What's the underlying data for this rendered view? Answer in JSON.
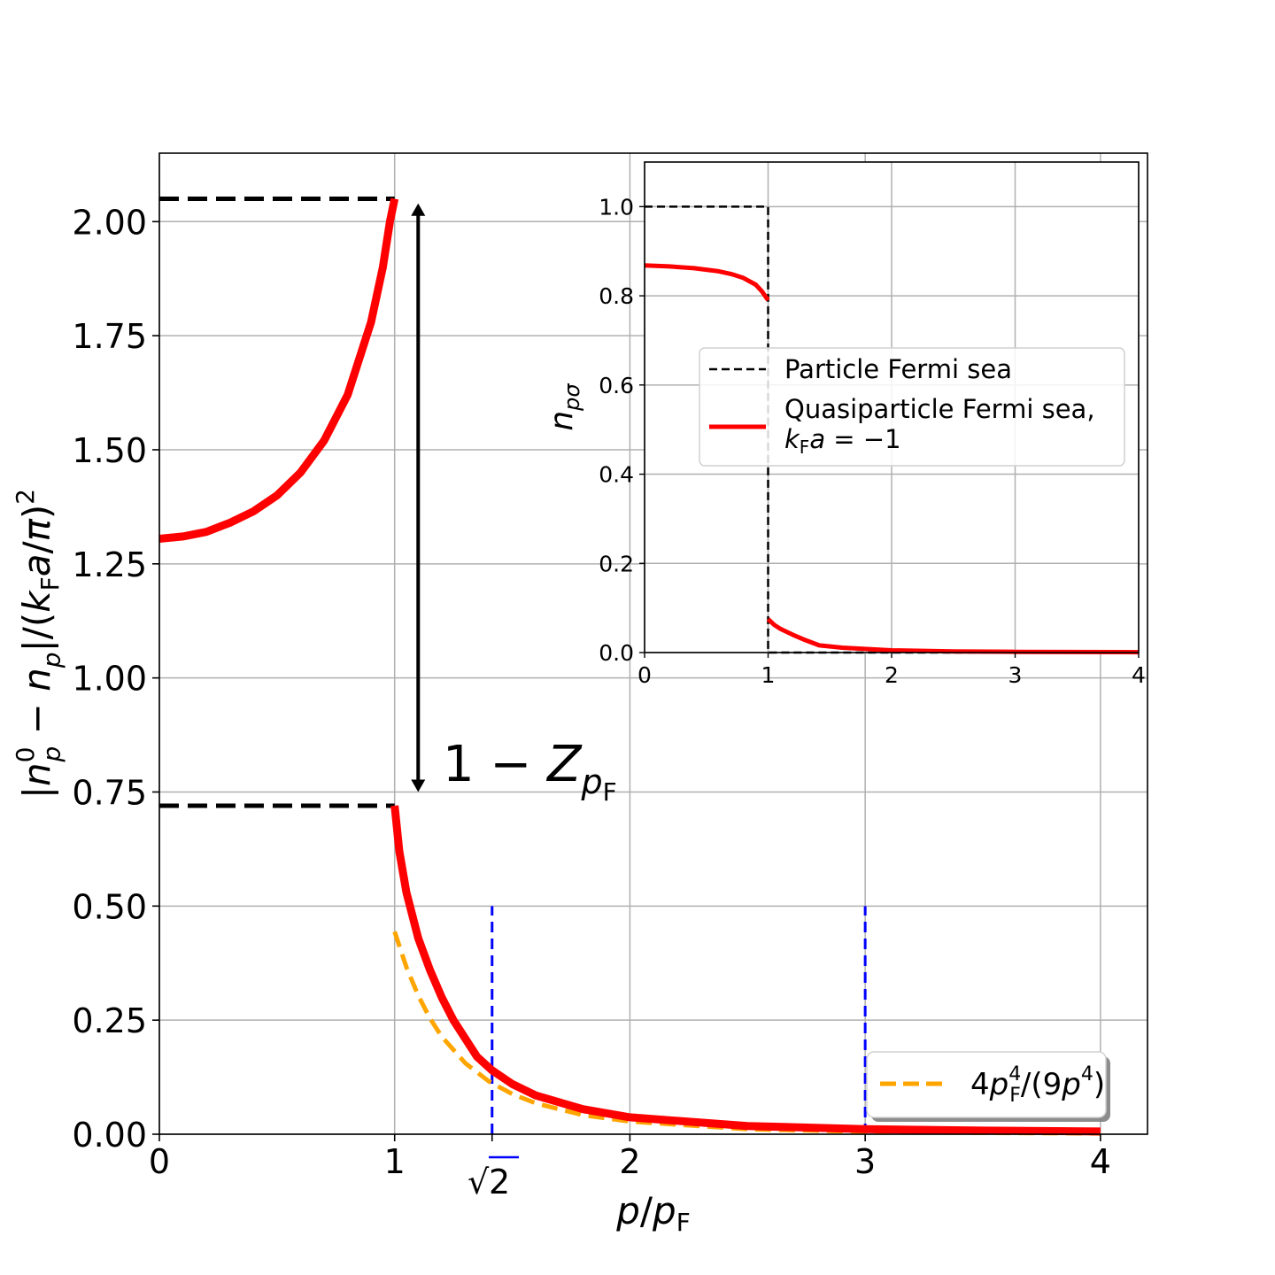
{
  "chart_data": [
    {
      "type": "line",
      "xlabel": "p/p_F",
      "ylabel": "|n_p^0 − n_p|/(k_F a/π)^2",
      "xlim": [
        0,
        4.2
      ],
      "ylim": [
        0,
        2.15
      ],
      "grid": true,
      "x_ticks": [
        "0",
        "1",
        "2",
        "3",
        "4"
      ],
      "y_ticks": [
        "0.00",
        "0.25",
        "0.50",
        "0.75",
        "1.00",
        "1.25",
        "1.50",
        "1.75",
        "2.00"
      ],
      "extra_x_tick": {
        "label": "√2",
        "value": 1.4142,
        "color": "#0000ff"
      },
      "series": [
        {
          "name": "",
          "color": "#ff0000",
          "style": "solid",
          "x": [
            0,
            0.1,
            0.2,
            0.3,
            0.4,
            0.5,
            0.6,
            0.7,
            0.8,
            0.9,
            0.95,
            0.98,
            1.0
          ],
          "y": [
            1.305,
            1.31,
            1.32,
            1.34,
            1.365,
            1.4,
            1.45,
            1.52,
            1.62,
            1.78,
            1.9,
            2.0,
            2.05
          ]
        },
        {
          "name": "",
          "color": "#ff0000",
          "style": "solid",
          "x": [
            1.0,
            1.02,
            1.05,
            1.1,
            1.15,
            1.2,
            1.25,
            1.3,
            1.35,
            1.4142,
            1.5,
            1.6,
            1.8,
            2.0,
            2.5,
            3.0,
            3.5,
            4.0
          ],
          "y": [
            0.72,
            0.62,
            0.53,
            0.43,
            0.36,
            0.3,
            0.25,
            0.21,
            0.17,
            0.14,
            0.11,
            0.085,
            0.055,
            0.037,
            0.018,
            0.011,
            0.008,
            0.006
          ]
        },
        {
          "name": "4p_F^4/(9p^4)",
          "color": "#ffa500",
          "style": "dashed",
          "x": [
            1.0,
            1.05,
            1.1,
            1.15,
            1.2,
            1.3,
            1.4,
            1.5,
            1.6,
            1.8,
            2.0,
            2.5,
            3.0,
            3.5,
            4.0
          ],
          "y": [
            0.444,
            0.366,
            0.304,
            0.254,
            0.214,
            0.156,
            0.116,
            0.088,
            0.068,
            0.042,
            0.028,
            0.011,
            0.0055,
            0.003,
            0.0017
          ]
        }
      ],
      "reference_lines": [
        {
          "type": "hline",
          "y": 2.05,
          "x_range": [
            0,
            1.0
          ],
          "color": "#000000",
          "style": "dashed"
        },
        {
          "type": "hline",
          "y": 0.72,
          "x_range": [
            0,
            1.0
          ],
          "color": "#000000",
          "style": "dashed"
        },
        {
          "type": "vline",
          "x": 1.4142,
          "y_range": [
            0,
            0.5
          ],
          "color": "#0000ff",
          "style": "dashed"
        },
        {
          "type": "vline",
          "x": 3.0,
          "y_range": [
            0,
            0.5
          ],
          "color": "#0000ff",
          "style": "dashed"
        }
      ],
      "arrow": {
        "x": 1.1,
        "y_from": 0.75,
        "y_to": 2.04,
        "label": "1 − Z_{p_F}"
      },
      "legend": {
        "position": "lower right",
        "entries": [
          "4p_F^4/(9p^4)"
        ]
      }
    },
    {
      "type": "line",
      "xlabel": "",
      "ylabel": "n_pσ",
      "xlim": [
        0,
        4
      ],
      "ylim": [
        0,
        1.1
      ],
      "grid": true,
      "x_ticks": [
        "0",
        "1",
        "2",
        "3",
        "4"
      ],
      "y_ticks": [
        "0.0",
        "0.2",
        "0.4",
        "0.6",
        "0.8",
        "1.0"
      ],
      "series": [
        {
          "name": "Particle Fermi sea",
          "color": "#000000",
          "style": "dashed",
          "x": [
            0,
            1,
            1,
            4
          ],
          "y": [
            1,
            1,
            0,
            0
          ]
        },
        {
          "name": "Quasiparticle Fermi sea, k_F a = −1",
          "color": "#ff0000",
          "style": "solid",
          "x": [
            0,
            0.2,
            0.4,
            0.6,
            0.7,
            0.8,
            0.9,
            0.95,
            1.0
          ],
          "y": [
            0.868,
            0.866,
            0.862,
            0.855,
            0.849,
            0.84,
            0.825,
            0.81,
            0.79
          ]
        },
        {
          "name": "",
          "color": "#ff0000",
          "style": "solid",
          "x": [
            1.0,
            1.05,
            1.1,
            1.2,
            1.3,
            1.4142,
            1.6,
            2.0,
            2.5,
            3.0,
            4.0
          ],
          "y": [
            0.075,
            0.062,
            0.053,
            0.04,
            0.028,
            0.016,
            0.011,
            0.005,
            0.0025,
            0.0015,
            0.0008
          ]
        }
      ],
      "legend": {
        "position": "center-right",
        "entries": [
          "Particle Fermi sea",
          "Quasiparticle Fermi sea,",
          "k_F a = −1"
        ]
      }
    }
  ],
  "labels": {
    "main_x_ticks": [
      "0",
      "1",
      "2",
      "3",
      "4"
    ],
    "main_y_ticks": [
      "0.00",
      "0.25",
      "0.50",
      "0.75",
      "1.00",
      "1.25",
      "1.50",
      "1.75",
      "2.00"
    ],
    "sqrt_tick": "√2",
    "sqrt_arg": "2",
    "inset_x_ticks": [
      "0",
      "1",
      "2",
      "3",
      "4"
    ],
    "inset_y_ticks": [
      "0.0",
      "0.2",
      "0.4",
      "0.6",
      "0.8",
      "1.0"
    ],
    "main_xlabel": {
      "p": "p",
      "slash": "/",
      "pF": "p",
      "sub": "F"
    },
    "main_ylabel": {
      "open": "|",
      "n0": "n",
      "sup0": "0",
      "subp": "p",
      "minus": " − ",
      "n": "n",
      "subp2": "p",
      "mid": "|/(",
      "k": "k",
      "subF": "F",
      "a": "a",
      "slash": "/",
      "pi": "π",
      "close": ")",
      "sq": "2"
    },
    "inset_ylabel": {
      "n": "n",
      "sub": "pσ"
    },
    "annotation": {
      "one_minus": "1 − ",
      "Z": "Z",
      "sub_p": "p",
      "sub_F": "F"
    },
    "legend_main": {
      "four": "4",
      "p": "p",
      "supF4": "4",
      "subF": "F",
      "mid": "/(9",
      "p2": "p",
      "sup4": "4",
      "close": ")"
    },
    "legend_inset": {
      "line1": "Particle Fermi sea",
      "line2": "Quasiparticle Fermi sea,",
      "k": "k",
      "subF": "F",
      "a": "a",
      "rest": " = −1"
    }
  },
  "colors": {
    "red": "#ff0000",
    "orange": "#ffa500",
    "blue": "#0000ff",
    "black": "#000000",
    "grid": "#b0b0b0"
  }
}
